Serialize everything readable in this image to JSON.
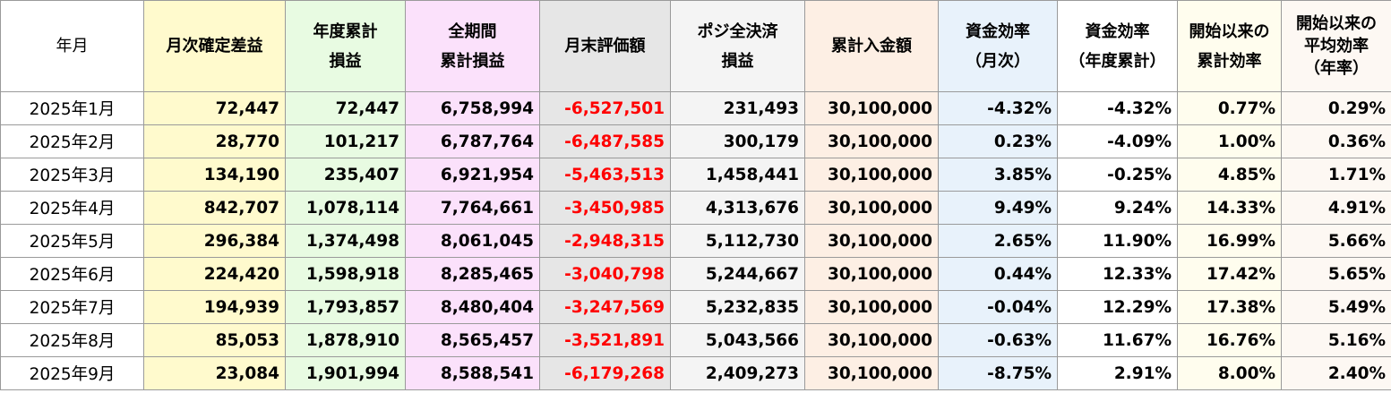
{
  "headers": [
    "年月",
    "月次確定差益",
    "年度累計\n損益",
    "全期間\n累計損益",
    "月末評価額",
    "ポジ全決済\n損益",
    "累計入金額",
    "資金効率\n（月次）",
    "資金効率\n（年度累計）",
    "開始以来の\n累計効率",
    "開始以来の\n平均効率\n（年率）"
  ],
  "rows": [
    [
      "2025年1月",
      "72,447",
      "72,447",
      "6,758,994",
      "-6,527,501",
      "231,493",
      "30,100,000",
      "-4.32%",
      "-4.32%",
      "0.77%",
      "0.29%"
    ],
    [
      "2025年2月",
      "28,770",
      "101,217",
      "6,787,764",
      "-6,487,585",
      "300,179",
      "30,100,000",
      "0.23%",
      "-4.09%",
      "1.00%",
      "0.36%"
    ],
    [
      "2025年3月",
      "134,190",
      "235,407",
      "6,921,954",
      "-5,463,513",
      "1,458,441",
      "30,100,000",
      "3.85%",
      "-0.25%",
      "4.85%",
      "1.71%"
    ],
    [
      "2025年4月",
      "842,707",
      "1,078,114",
      "7,764,661",
      "-3,450,985",
      "4,313,676",
      "30,100,000",
      "9.49%",
      "9.24%",
      "14.33%",
      "4.91%"
    ],
    [
      "2025年5月",
      "296,384",
      "1,374,498",
      "8,061,045",
      "-2,948,315",
      "5,112,730",
      "30,100,000",
      "2.65%",
      "11.90%",
      "16.99%",
      "5.66%"
    ],
    [
      "2025年6月",
      "224,420",
      "1,598,918",
      "8,285,465",
      "-3,040,798",
      "5,244,667",
      "30,100,000",
      "0.44%",
      "12.33%",
      "17.42%",
      "5.65%"
    ],
    [
      "2025年7月",
      "194,939",
      "1,793,857",
      "8,480,404",
      "-3,247,569",
      "5,232,835",
      "30,100,000",
      "-0.04%",
      "12.29%",
      "17.38%",
      "5.49%"
    ],
    [
      "2025年8月",
      "85,053",
      "1,878,910",
      "8,565,457",
      "-3,521,891",
      "5,043,566",
      "30,100,000",
      "-0.63%",
      "11.67%",
      "16.76%",
      "5.16%"
    ],
    [
      "2025年9月",
      "23,084",
      "1,901,994",
      "8,588,541",
      "-6,179,268",
      "2,409,273",
      "30,100,000",
      "-8.75%",
      "2.91%",
      "8.00%",
      "2.40%"
    ]
  ],
  "column_colors": {
    "c1": "#fffacd",
    "c2": "#e8fbe2",
    "c3": "#fbe1fb",
    "c4": "#e6e6e6",
    "c5": "#f4f4f4",
    "c6": "#fdefe4",
    "c7": "#e8f2fb",
    "c8": "#ffffff",
    "c9": "#fffdee",
    "c10": "#fdf8f3",
    "negative_valuation_text": "#ff0000"
  }
}
